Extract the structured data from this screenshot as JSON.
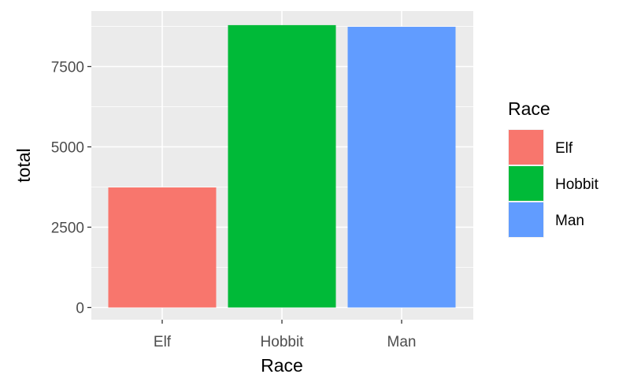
{
  "chart_data": {
    "type": "bar",
    "xlabel": "Race",
    "ylabel": "total",
    "categories": [
      "Elf",
      "Hobbit",
      "Man"
    ],
    "values": [
      3737,
      8789,
      8737
    ],
    "colors": [
      "#F8766D",
      "#00BA38",
      "#619CFF"
    ],
    "ylim": [
      0,
      9200
    ],
    "yticks": [
      0,
      2500,
      5000,
      7500
    ],
    "ytick_labels": [
      "0",
      "2500",
      "5000",
      "7500"
    ],
    "grid": true,
    "panel_background": "#EBEBEB",
    "legend": {
      "title": "Race",
      "position": "right",
      "entries": [
        "Elf",
        "Hobbit",
        "Man"
      ]
    }
  }
}
